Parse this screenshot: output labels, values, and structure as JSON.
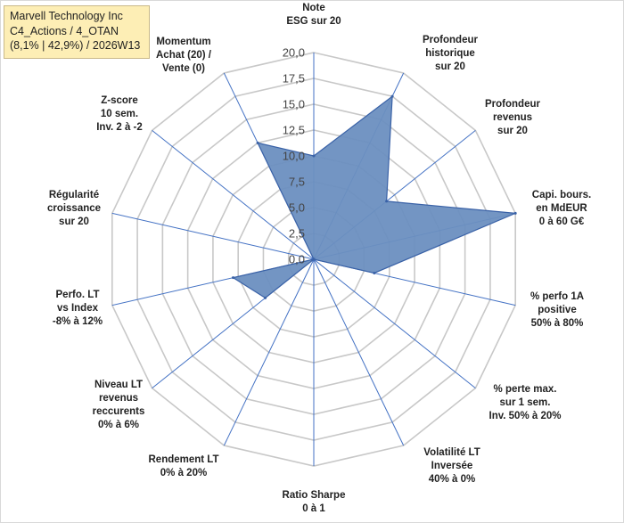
{
  "title": {
    "line1": "Marvell Technology Inc",
    "line2": "C4_Actions / 4_OTAN",
    "line3": "(8,1% | 42,9%) / 2026W13"
  },
  "chart_data": {
    "type": "radar",
    "r_min": 0,
    "r_max": 20,
    "tick_step": 2.5,
    "tick_labels": [
      "0,0",
      "2,5",
      "5,0",
      "7,5",
      "10,0",
      "12,5",
      "15,0",
      "17,5",
      "20,0"
    ],
    "categories": [
      "Note ESG sur 20",
      "Profondeur historique sur 20",
      "Profondeur revenus sur 20",
      "Capi. bours. en MdEUR 0 à 60 G€",
      "% perfo 1A positive 50% à 80%",
      "% perte max. sur 1 sem. Inv. 50% à 20%",
      "Volatilité LT Inversée 40% à 0%",
      "Ratio Sharpe 0 à 1",
      "Rendement LT 0% à 20%",
      "Niveau LT revenus reccurents 0% à 6%",
      "Perfo. LT vs Index -8% à 12%",
      "Régularité croissance sur 20",
      "Z-score 10 sem. Inv. 2 à -2",
      "Momentum Achat (20) / Vente (0)"
    ],
    "category_lines": [
      [
        "Note",
        "ESG sur 20"
      ],
      [
        "Profondeur",
        "historique",
        "sur 20"
      ],
      [
        "Profondeur",
        "revenus",
        "sur 20"
      ],
      [
        "Capi. bours.",
        "en MdEUR",
        "0 à 60 G€"
      ],
      [
        "% perfo 1A",
        "positive",
        "50% à 80%"
      ],
      [
        "% perte max.",
        "sur 1 sem.",
        "Inv. 50% à 20%"
      ],
      [
        "Volatilité LT",
        "Inversée",
        "40% à 0%"
      ],
      [
        "Ratio Sharpe",
        "0 à 1"
      ],
      [
        "Rendement LT",
        "0% à 20%"
      ],
      [
        "Niveau LT",
        "revenus",
        "reccurents",
        "0% à 6%"
      ],
      [
        "Perfo. LT",
        "vs Index",
        "-8% à 12%"
      ],
      [
        "Régularité",
        "croissance",
        "sur 20"
      ],
      [
        "Z-score",
        "10 sem.",
        "Inv. 2 à -2"
      ],
      [
        "Momentum",
        "Achat (20) /",
        "Vente (0)"
      ]
    ],
    "series": [
      {
        "name": "Marvell Technology Inc",
        "values": [
          10,
          17.5,
          9,
          20,
          6,
          0,
          0,
          0,
          0,
          6,
          8,
          0,
          0,
          12.5
        ]
      }
    ],
    "colors": {
      "fill": "#6b8fc0",
      "stroke": "#3a62a7",
      "grid": "#c8c8c8",
      "spoke": "#4472c4"
    }
  }
}
